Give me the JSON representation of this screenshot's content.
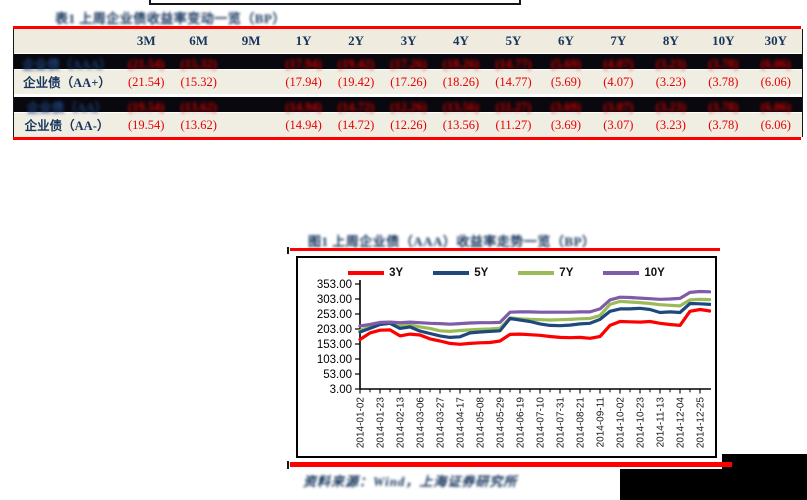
{
  "colors": {
    "accent_red": "#FE0000",
    "navy_text": "#17365D",
    "table_band_bg": "#EFEBDE",
    "redacted_band_bg": "#08080E",
    "series_3y": "#FE0000",
    "series_5y": "#1F497D",
    "series_7y": "#9BBB59",
    "series_10y": "#7E5CA8"
  },
  "table": {
    "title": "表1 上周企业债收益率变动一览（BP）",
    "title_blurred": true,
    "columns": [
      "",
      "3M",
      "6M",
      "9M",
      "1Y",
      "2Y",
      "3Y",
      "4Y",
      "5Y",
      "6Y",
      "7Y",
      "8Y",
      "10Y",
      "30Y"
    ],
    "rows": [
      {
        "label": "企业债（AAA）",
        "redacted": true,
        "values": [
          "(21.54)",
          "(15.32)",
          "",
          "(17.94)",
          "(19.42)",
          "(17.26)",
          "(18.26)",
          "(14.77)",
          "(5.69)",
          "(4.07)",
          "(3.23)",
          "(3.78)",
          "(6.06)"
        ]
      },
      {
        "label": "企业债（AA+）",
        "redacted": false,
        "values": [
          "(21.54)",
          "(15.32)",
          "",
          "(17.94)",
          "(19.42)",
          "(17.26)",
          "(18.26)",
          "(14.77)",
          "(5.69)",
          "(4.07)",
          "(3.23)",
          "(3.78)",
          "(6.06)"
        ]
      },
      {
        "label": "企业债（AA）",
        "redacted": true,
        "values": [
          "(19.54)",
          "(13.62)",
          "",
          "(14.94)",
          "(14.72)",
          "(12.26)",
          "(13.56)",
          "(11.27)",
          "(3.69)",
          "(3.07)",
          "(3.23)",
          "(3.78)",
          "(6.06)"
        ]
      },
      {
        "label": "企业债（AA-）",
        "redacted": false,
        "values": [
          "(19.54)",
          "(13.62)",
          "",
          "(14.94)",
          "(14.72)",
          "(12.26)",
          "(13.56)",
          "(11.27)",
          "(3.69)",
          "(3.07)",
          "(3.23)",
          "(3.78)",
          "(6.06)"
        ]
      }
    ]
  },
  "chart_data": {
    "type": "line",
    "title": "图1 上周企业债（AAA）收益率走势一览（BP）",
    "title_blurred": true,
    "legend_position": "top",
    "grid": false,
    "ylim": [
      3,
      353
    ],
    "yticks": [
      "353.00",
      "303.00",
      "253.00",
      "203.00",
      "153.00",
      "103.00",
      "53.00",
      "3.00"
    ],
    "x_labels": [
      "2014-01-02",
      "2014-01-23",
      "2014-02-13",
      "2014-03-06",
      "2014-03-27",
      "2014-04-17",
      "2014-05-08",
      "2014-05-29",
      "2014-06-19",
      "2014-07-10",
      "2014-07-31",
      "2014-08-21",
      "2014-09-11",
      "2014-10-02",
      "2014-10-23",
      "2014-11-13",
      "2014-12-04",
      "2014-12-25"
    ],
    "series": [
      {
        "name": "3Y",
        "color": "#FE0000",
        "values": [
          168,
          190,
          199,
          200,
          180,
          186,
          183,
          170,
          163,
          155,
          152,
          155,
          157,
          158,
          163,
          185,
          186,
          184,
          182,
          178,
          175,
          174,
          175,
          172,
          178,
          215,
          228,
          227,
          226,
          228,
          222,
          218,
          215,
          262,
          268,
          263
        ]
      },
      {
        "name": "5Y",
        "color": "#1F497D",
        "values": [
          193,
          205,
          218,
          222,
          205,
          210,
          196,
          188,
          180,
          175,
          177,
          190,
          193,
          195,
          197,
          238,
          233,
          228,
          220,
          215,
          214,
          216,
          220,
          222,
          235,
          262,
          270,
          270,
          272,
          268,
          258,
          260,
          258,
          288,
          287,
          285
        ]
      },
      {
        "name": "7Y",
        "color": "#9BBB59",
        "values": [
          198,
          210,
          220,
          222,
          215,
          217,
          210,
          205,
          197,
          195,
          198,
          200,
          202,
          203,
          205,
          240,
          237,
          235,
          234,
          233,
          234,
          235,
          237,
          238,
          248,
          285,
          295,
          293,
          291,
          288,
          284,
          282,
          280,
          300,
          302,
          301
        ]
      },
      {
        "name": "10Y",
        "color": "#7E5CA8",
        "values": [
          213,
          218,
          225,
          226,
          224,
          226,
          224,
          222,
          221,
          219,
          221,
          223,
          224,
          224,
          225,
          259,
          260,
          260,
          259,
          259,
          259,
          259,
          260,
          260,
          270,
          300,
          309,
          308,
          306,
          304,
          302,
          303,
          305,
          325,
          328,
          327
        ]
      }
    ]
  },
  "caption": {
    "text": "资料来源：Wind，上海证券研究所",
    "blurred": true
  }
}
